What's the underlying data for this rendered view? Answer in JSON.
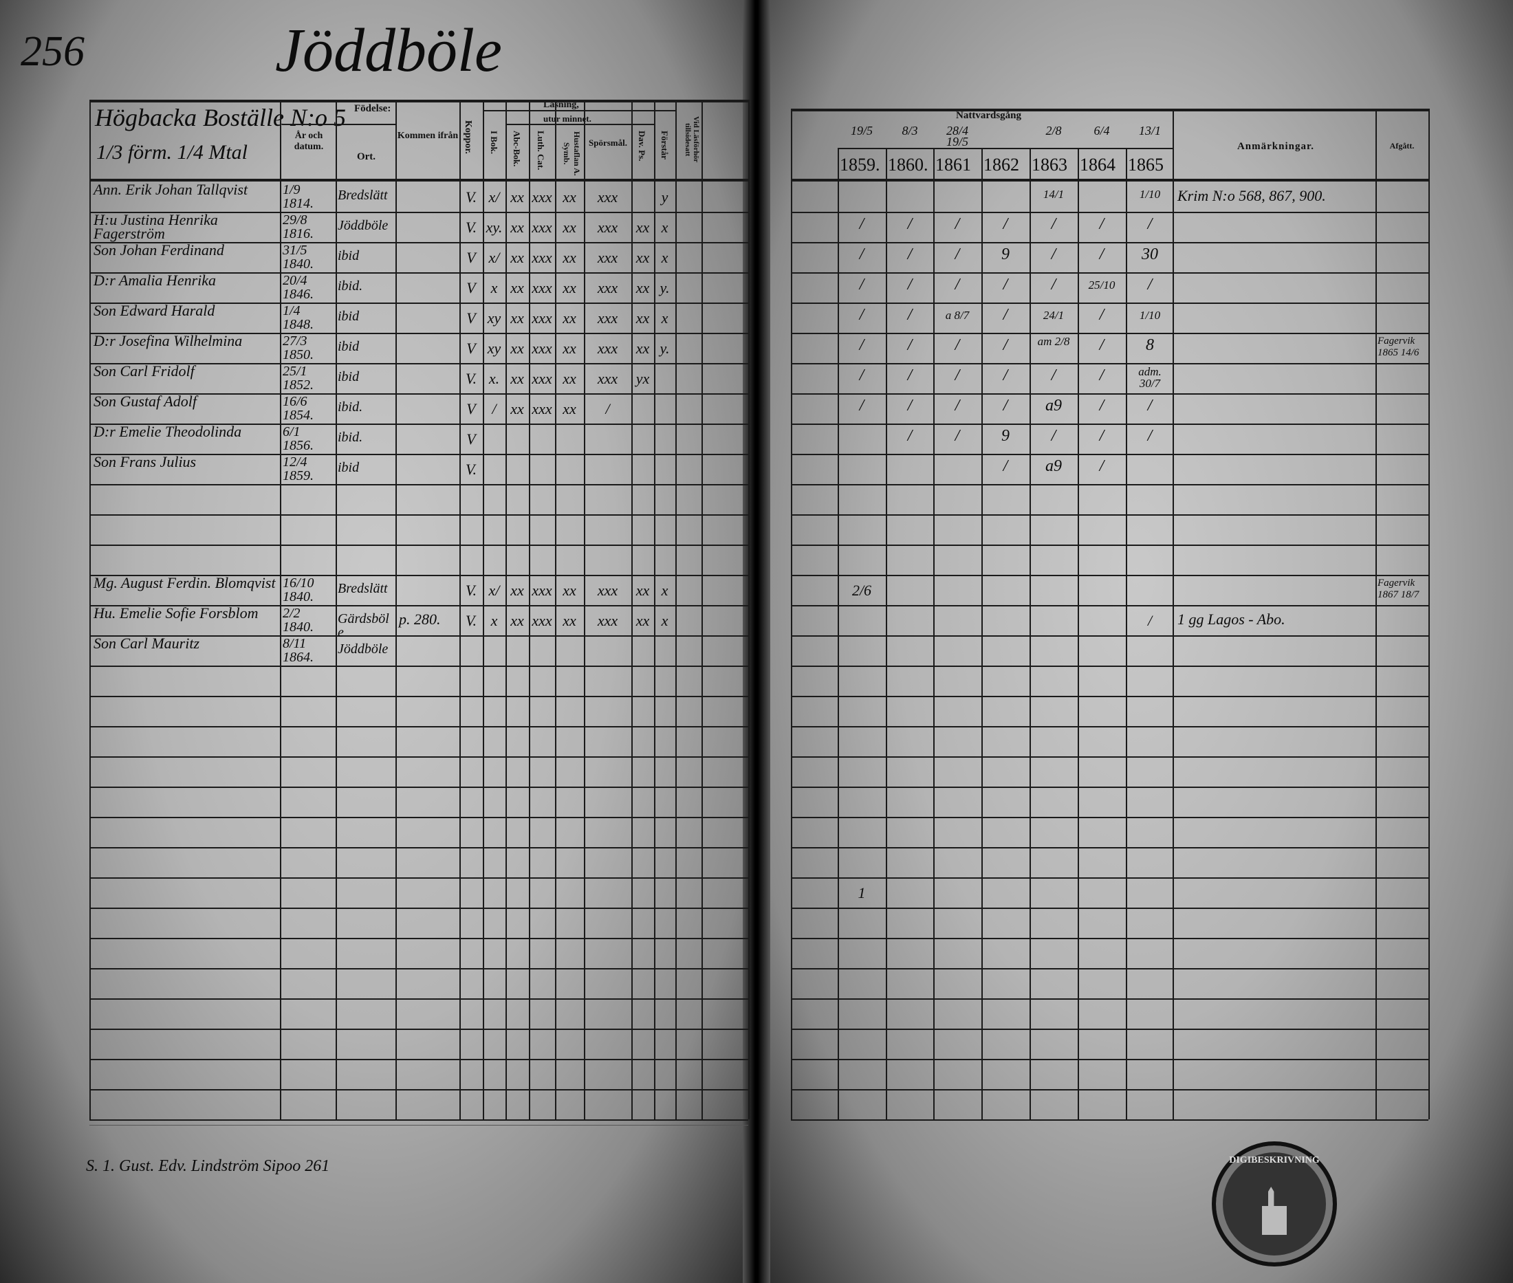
{
  "left_page": {
    "page_number": "256",
    "village": "Jöddböle",
    "farm": "Högbacka Boställe N:o 5",
    "farm_share": "1/3 förm. 1/4 Mtal",
    "headers": {
      "birth": "Födelse:",
      "year_date": "År och datum.",
      "place": "Ort.",
      "from": "Kommen ifrån",
      "smallpox": "Koppor.",
      "reading": "Läsning,",
      "by_heart": "utur minnet.",
      "in_book": "I Bok.",
      "abc_book": "Abc-Bok.",
      "luth_cat": "Luth. Cat.",
      "hustaflan": "Hustaflan A. Symb.",
      "sporsmal": "Spörsmål.",
      "dav_ps": "Dav. Ps.",
      "forstar": "Förstår",
      "vid_lasforhor": "Vid Läsförhör tillsidesatt"
    },
    "entries": [
      {
        "row": 0,
        "name": "Ann. Erik Johan Tallqvist",
        "date": "1/9 1814.",
        "place": "Bredslätt",
        "from": "",
        "koppor": "V.",
        "i_bok": "x/",
        "abc": "xx",
        "luth": "xxx",
        "hust": "xx",
        "spors": "xxx",
        "dav": "",
        "forstar": "y"
      },
      {
        "row": 1,
        "name": "H:u Justina Henrika Fagerström",
        "date": "29/8 1816.",
        "place": "Jöddböle",
        "from": "",
        "koppor": "V.",
        "i_bok": "xy.",
        "abc": "xx",
        "luth": "xxx",
        "hust": "xx",
        "spors": "xxx",
        "dav": "xx",
        "forstar": "x"
      },
      {
        "row": 2,
        "name": "Son Johan Ferdinand",
        "date": "31/5 1840.",
        "place": "ibid",
        "from": "",
        "koppor": "V",
        "i_bok": "x/",
        "abc": "xx",
        "luth": "xxx",
        "hust": "xx",
        "spors": "xxx",
        "dav": "xx",
        "forstar": "x"
      },
      {
        "row": 3,
        "name": "D:r Amalia Henrika",
        "date": "20/4 1846.",
        "place": "ibid.",
        "from": "",
        "koppor": "V",
        "i_bok": "x",
        "abc": "xx",
        "luth": "xxx",
        "hust": "xx",
        "spors": "xxx",
        "dav": "xx",
        "forstar": "y."
      },
      {
        "row": 4,
        "name": "Son Edward Harald",
        "date": "1/4 1848.",
        "place": "ibid",
        "from": "",
        "koppor": "V",
        "i_bok": "xy",
        "abc": "xx",
        "luth": "xxx",
        "hust": "xx",
        "spors": "xxx",
        "dav": "xx",
        "forstar": "x"
      },
      {
        "row": 5,
        "name": "D:r Josefina Wilhelmina",
        "date": "27/3 1850.",
        "place": "ibid",
        "from": "",
        "koppor": "V",
        "i_bok": "xy",
        "abc": "xx",
        "luth": "xxx",
        "hust": "xx",
        "spors": "xxx",
        "dav": "xx",
        "forstar": "y."
      },
      {
        "row": 6,
        "name": "Son Carl Fridolf",
        "date": "25/1 1852.",
        "place": "ibid",
        "from": "",
        "koppor": "V.",
        "i_bok": "x.",
        "abc": "xx",
        "luth": "xxx",
        "hust": "xx",
        "spors": "xxx",
        "dav": "yx",
        "forstar": ""
      },
      {
        "row": 7,
        "name": "Son Gustaf Adolf",
        "date": "16/6 1854.",
        "place": "ibid.",
        "from": "",
        "koppor": "V",
        "i_bok": "/",
        "abc": "xx",
        "luth": "xxx",
        "hust": "xx",
        "spors": "/",
        "dav": "",
        "forstar": ""
      },
      {
        "row": 8,
        "name": "D:r Emelie Theodolinda",
        "date": "6/1 1856.",
        "place": "ibid.",
        "from": "",
        "koppor": "V",
        "i_bok": "",
        "abc": "",
        "luth": "",
        "hust": "",
        "spors": "",
        "dav": "",
        "forstar": ""
      },
      {
        "row": 9,
        "name": "Son Frans Julius",
        "date": "12/4 1859.",
        "place": "ibid",
        "from": "",
        "koppor": "V.",
        "i_bok": "",
        "abc": "",
        "luth": "",
        "hust": "",
        "spors": "",
        "dav": "",
        "forstar": ""
      },
      {
        "row": 13,
        "name": "Mg. August Ferdin. Blomqvist",
        "date": "16/10 1840.",
        "place": "Bredslätt",
        "from": "",
        "koppor": "V.",
        "i_bok": "x/",
        "abc": "xx",
        "luth": "xxx",
        "hust": "xx",
        "spors": "xxx",
        "dav": "xx",
        "forstar": "x"
      },
      {
        "row": 14,
        "name": "Hu. Emelie Sofie Forsblom",
        "date": "2/2 1840.",
        "place": "Gärdsböle",
        "from": "p. 280.",
        "koppor": "V.",
        "i_bok": "x",
        "abc": "xx",
        "luth": "xxx",
        "hust": "xx",
        "spors": "xxx",
        "dav": "xx",
        "forstar": "x"
      },
      {
        "row": 15,
        "name": "Son Carl Mauritz",
        "date": "8/11 1864.",
        "place": "Jöddböle",
        "from": "",
        "koppor": "",
        "i_bok": "",
        "abc": "",
        "luth": "",
        "hust": "",
        "spors": "",
        "dav": "",
        "forstar": ""
      }
    ],
    "footer_note": "S. 1. Gust. Edv. Lindström Sipoo 261"
  },
  "right_page": {
    "communion_title": "Nattvardsgång",
    "communion_dates": [
      "19/5",
      "8/3",
      "28/4 19/5",
      "",
      "2/8",
      "6/4",
      "13/1"
    ],
    "years": [
      "1859.",
      "1860.",
      "1861",
      "1862",
      "1863",
      "1864",
      "1865"
    ],
    "remarks_header": "Anmärkningar.",
    "departed_header": "Afgått.",
    "communion_marks": [
      [
        "",
        "",
        "",
        "",
        "14/1",
        "",
        "1/10"
      ],
      [
        "/",
        "/",
        "/",
        "/",
        "/",
        "/",
        "/"
      ],
      [
        "/",
        "/",
        "/",
        "9",
        "/",
        "/",
        "30"
      ],
      [
        "/",
        "/",
        "/",
        "/",
        "/",
        "25/10",
        "/"
      ],
      [
        "/",
        "/",
        "a 8/7",
        "/",
        "24/1",
        "/",
        "1/10"
      ],
      [
        "/",
        "/",
        "/",
        "/",
        "am 2/8",
        "/",
        "8"
      ],
      [
        "/",
        "/",
        "/",
        "/",
        "/",
        "/",
        "adm. 30/7"
      ],
      [
        "/",
        "/",
        "/",
        "/",
        "a9",
        "/",
        "/"
      ],
      [
        "",
        "/",
        "/",
        "9",
        "/",
        "/",
        "/"
      ],
      [
        "",
        "",
        "",
        "/",
        "a9",
        "/",
        ""
      ]
    ],
    "remarks": [
      {
        "row": 0,
        "text": "Krim N:o 568, 867, 900."
      },
      {
        "row": 14,
        "text": "1 gg Lagos - Abo."
      }
    ],
    "departed": [
      {
        "row": 5,
        "text": "Fagervik 1865 14/6"
      },
      {
        "row": 13,
        "text": "Fagervik 1867 18/7"
      }
    ],
    "extra_marks": [
      {
        "row": 13,
        "col": 0,
        "text": "2/6"
      },
      {
        "row": 14,
        "col": 6,
        "text": "/"
      },
      {
        "row": 23,
        "col": 0,
        "text": "1"
      }
    ]
  },
  "stamp": {
    "text": "DIGIBESKRIVNING"
  }
}
